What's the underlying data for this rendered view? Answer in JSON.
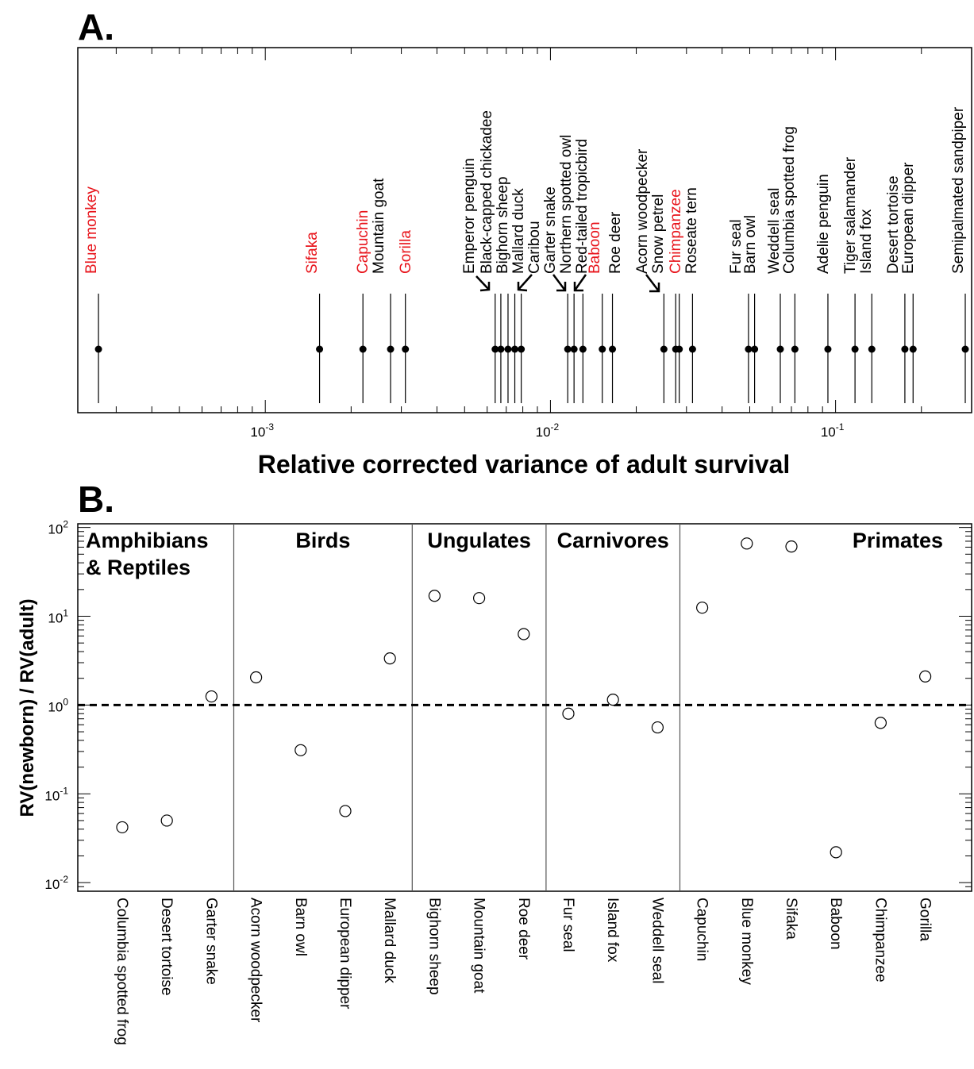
{
  "panel_a": {
    "letter": "A.",
    "xlabel": "Relative corrected variance of adult survival"
  },
  "panel_b": {
    "letter": "B.",
    "ylabel": "RV(newborn) / RV(adult)"
  },
  "colors": {
    "highlight": "#e8141b",
    "default": "#000000"
  },
  "chart_data": [
    {
      "type": "scatter",
      "panel": "A",
      "xscale": "log",
      "xlim": [
        0.00022,
        0.3
      ],
      "xticks": [
        {
          "value": 0.001,
          "base": "10",
          "exp": "-3"
        },
        {
          "value": 0.01,
          "base": "10",
          "exp": "-2"
        },
        {
          "value": 0.1,
          "base": "10",
          "exp": "-1"
        }
      ],
      "points": [
        {
          "name": "Blue monkey",
          "x": 0.00026,
          "highlight": true
        },
        {
          "name": "Sifaka",
          "x": 0.00155,
          "highlight": true
        },
        {
          "name": "Capuchin",
          "x": 0.0022,
          "highlight": true
        },
        {
          "name": "Mountain goat",
          "x": 0.00275,
          "highlight": false
        },
        {
          "name": "Gorilla",
          "x": 0.0031,
          "highlight": true
        },
        {
          "name": "Emperor penguin",
          "x": 0.0064,
          "highlight": false
        },
        {
          "name": "Black-capped chickadee",
          "x": 0.0067,
          "highlight": false
        },
        {
          "name": "Bighorn sheep",
          "x": 0.0071,
          "highlight": false
        },
        {
          "name": "Mallard duck",
          "x": 0.0075,
          "highlight": false
        },
        {
          "name": "Caribou",
          "x": 0.0079,
          "highlight": false
        },
        {
          "name": "Garter snake",
          "x": 0.0115,
          "highlight": false
        },
        {
          "name": "Northern spotted owl",
          "x": 0.0121,
          "highlight": false
        },
        {
          "name": "Red-tailed tropicbird",
          "x": 0.013,
          "highlight": false
        },
        {
          "name": "Baboon",
          "x": 0.0152,
          "highlight": true
        },
        {
          "name": "Roe deer",
          "x": 0.0165,
          "highlight": false
        },
        {
          "name": "Acorn woodpecker",
          "x": 0.025,
          "highlight": false
        },
        {
          "name": "Snow petrel",
          "x": 0.0275,
          "highlight": false
        },
        {
          "name": "Chimpanzee",
          "x": 0.0283,
          "highlight": true
        },
        {
          "name": "Roseate tern",
          "x": 0.0315,
          "highlight": false
        },
        {
          "name": "Fur seal",
          "x": 0.0495,
          "highlight": false
        },
        {
          "name": "Barn owl",
          "x": 0.052,
          "highlight": false
        },
        {
          "name": "Weddell seal",
          "x": 0.064,
          "highlight": false
        },
        {
          "name": "Columbia spotted frog",
          "x": 0.072,
          "highlight": false
        },
        {
          "name": "Adelie penguin",
          "x": 0.094,
          "highlight": false
        },
        {
          "name": "Tiger salamander",
          "x": 0.117,
          "highlight": false
        },
        {
          "name": "Island fox",
          "x": 0.134,
          "highlight": false
        },
        {
          "name": "Desert tortoise",
          "x": 0.175,
          "highlight": false
        },
        {
          "name": "European dipper",
          "x": 0.187,
          "highlight": false
        },
        {
          "name": "Semipalmated sandpiper",
          "x": 0.285,
          "highlight": false
        }
      ]
    },
    {
      "type": "scatter",
      "panel": "B",
      "yscale": "log",
      "ylim": [
        0.008,
        110
      ],
      "yticks": [
        {
          "value": 100,
          "base": "10",
          "exp": "2"
        },
        {
          "value": 10,
          "base": "10",
          "exp": "1"
        },
        {
          "value": 1,
          "base": "10",
          "exp": "0"
        },
        {
          "value": 0.1,
          "base": "10",
          "exp": "-1"
        },
        {
          "value": 0.01,
          "base": "10",
          "exp": "-2"
        }
      ],
      "reference_line": 1,
      "groups": [
        {
          "name_lines": [
            "Amphibians",
            "& Reptiles"
          ],
          "count": 3
        },
        {
          "name_lines": [
            "Birds"
          ],
          "count": 4
        },
        {
          "name_lines": [
            "Ungulates"
          ],
          "count": 3
        },
        {
          "name_lines": [
            "Carnivores"
          ],
          "count": 3
        },
        {
          "name_lines": [
            "Primates"
          ],
          "count": 6
        }
      ],
      "categories": [
        "Columbia spotted frog",
        "Desert tortoise",
        "Garter snake",
        "Acorn woodpecker",
        "Barn owl",
        "European dipper",
        "Mallard duck",
        "Bighorn sheep",
        "Mountain goat",
        "Roe deer",
        "Fur seal",
        "Island fox",
        "Weddell seal",
        "Capuchin",
        "Blue monkey",
        "Sifaka",
        "Baboon",
        "Chimpanzee",
        "Gorilla"
      ],
      "values": [
        0.042,
        0.05,
        1.25,
        2.05,
        0.31,
        0.064,
        3.35,
        17,
        16,
        6.3,
        0.8,
        1.15,
        0.56,
        12.5,
        66,
        61,
        0.022,
        0.63,
        2.1
      ]
    }
  ]
}
